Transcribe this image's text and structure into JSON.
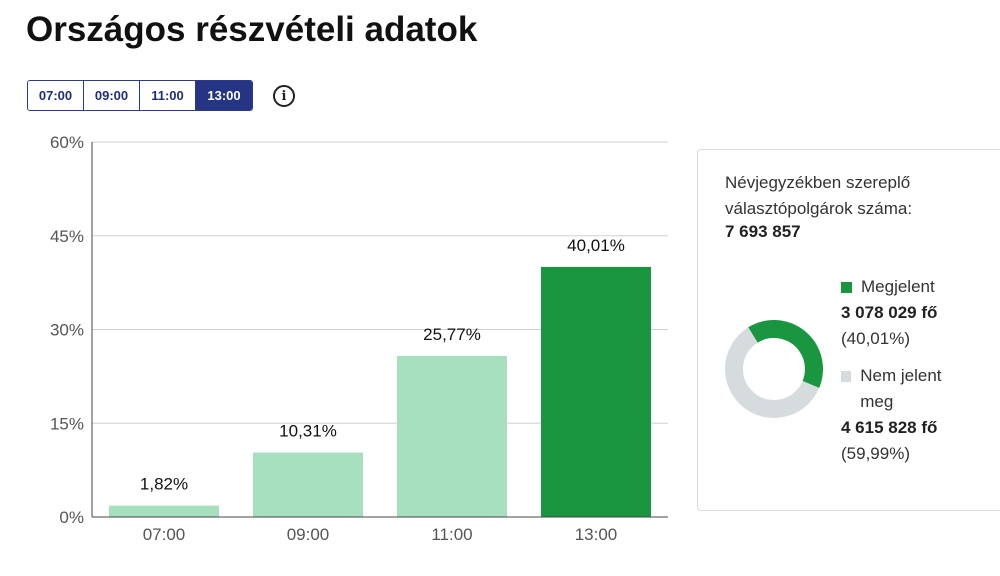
{
  "title": "Országos részvételi adatok",
  "time_tabs": [
    {
      "label": "07:00",
      "active": false
    },
    {
      "label": "09:00",
      "active": false
    },
    {
      "label": "11:00",
      "active": false
    },
    {
      "label": "13:00",
      "active": true
    }
  ],
  "info_icon": "info-icon",
  "chart_data": {
    "type": "bar",
    "categories": [
      "07:00",
      "09:00",
      "11:00",
      "13:00"
    ],
    "values": [
      1.82,
      10.31,
      25.77,
      40.01
    ],
    "value_labels": [
      "1,82%",
      "10,31%",
      "25,77%",
      "40,01%"
    ],
    "highlight_index": 3,
    "ylim": [
      0,
      60
    ],
    "yticks": [
      0,
      15,
      30,
      45,
      60
    ],
    "ytick_labels": [
      "0%",
      "15%",
      "30%",
      "45%",
      "60%"
    ],
    "grid": true,
    "colors": {
      "highlight": "#1a9641",
      "base": "#a6e0bf"
    }
  },
  "summary": {
    "registered_label": "Névjegyzékben szereplő választópolgárok száma:",
    "registered_value": "7 693 857",
    "present": {
      "label": "Megjelent",
      "count": "3 078 029 fő",
      "percent": "(40,01%)",
      "color": "#1a9641",
      "share": 40.01
    },
    "absent": {
      "label": "Nem jelent meg",
      "count": "4 615 828 fő",
      "percent": "(59,99%)",
      "color": "#d6dbdd",
      "share": 59.99
    }
  }
}
